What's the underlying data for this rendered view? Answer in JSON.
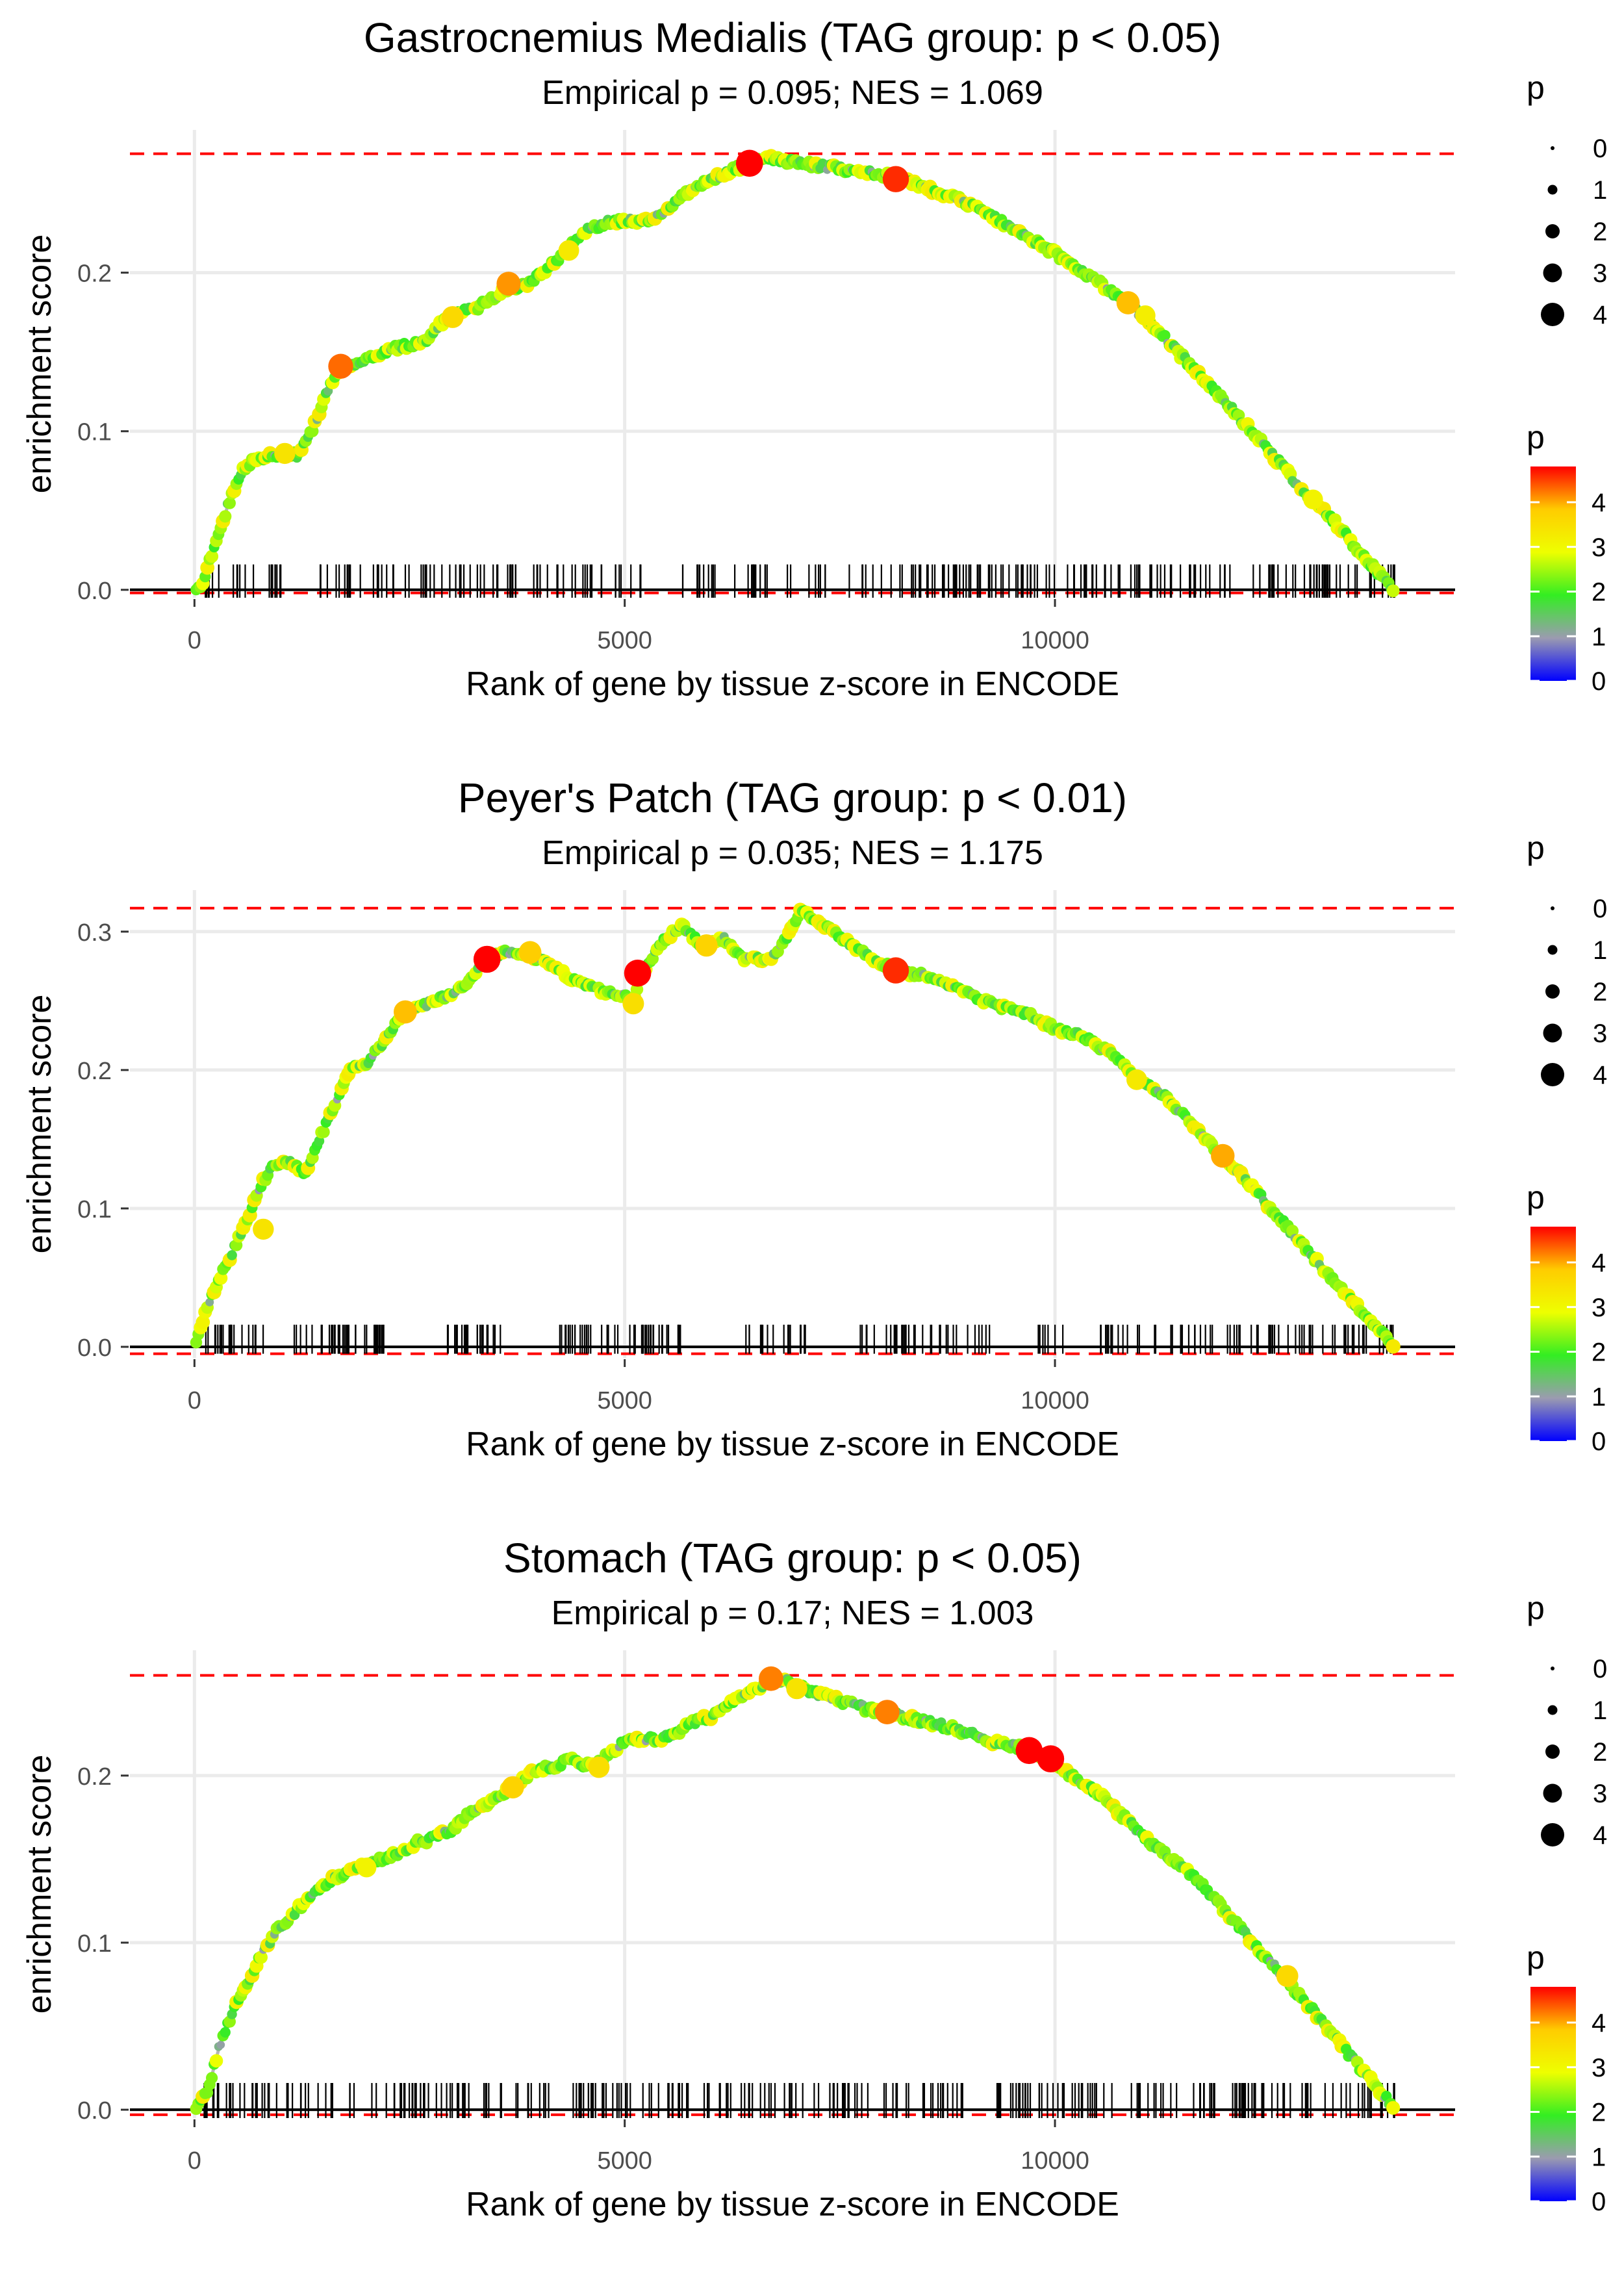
{
  "figure": {
    "background": "#ffffff"
  },
  "chart_data": [
    {
      "type": "line",
      "title": "Gastrocnemius Medialis (TAG group: p < 0.05)",
      "subtitle": "Empirical p = 0.095; NES = 1.069",
      "xlabel": "Rank of gene by tissue z-score in ENCODE",
      "ylabel": "enrichment score",
      "xlim": [
        -750,
        14650
      ],
      "ylim": [
        -0.005,
        0.29
      ],
      "xticks": [
        0,
        5000,
        10000
      ],
      "xtick_labels": [
        "0",
        "5000",
        "10000"
      ],
      "yticks": [
        0.0,
        0.1,
        0.2
      ],
      "ytick_labels": [
        "0.0",
        "0.1",
        "0.2"
      ],
      "max_es": 0.275,
      "min_es": -0.002,
      "baseline": 0,
      "curve": [
        [
          0,
          0.0
        ],
        [
          100,
          0.005
        ],
        [
          250,
          0.03
        ],
        [
          400,
          0.055
        ],
        [
          550,
          0.075
        ],
        [
          700,
          0.082
        ],
        [
          900,
          0.085
        ],
        [
          1000,
          0.085
        ],
        [
          1200,
          0.085
        ],
        [
          1350,
          0.098
        ],
        [
          1500,
          0.12
        ],
        [
          1650,
          0.138
        ],
        [
          1850,
          0.143
        ],
        [
          2050,
          0.147
        ],
        [
          2300,
          0.152
        ],
        [
          2550,
          0.155
        ],
        [
          2700,
          0.158
        ],
        [
          2900,
          0.17
        ],
        [
          3100,
          0.175
        ],
        [
          3300,
          0.178
        ],
        [
          3500,
          0.186
        ],
        [
          3650,
          0.19
        ],
        [
          3850,
          0.193
        ],
        [
          4050,
          0.2
        ],
        [
          4250,
          0.21
        ],
        [
          4500,
          0.225
        ],
        [
          4800,
          0.232
        ],
        [
          5050,
          0.233
        ],
        [
          5250,
          0.232
        ],
        [
          5450,
          0.238
        ],
        [
          5700,
          0.25
        ],
        [
          5950,
          0.258
        ],
        [
          6150,
          0.262
        ],
        [
          6400,
          0.268
        ],
        [
          6650,
          0.273
        ],
        [
          6900,
          0.27
        ],
        [
          7200,
          0.268
        ],
        [
          7600,
          0.265
        ],
        [
          8000,
          0.262
        ],
        [
          8400,
          0.255
        ],
        [
          8800,
          0.248
        ],
        [
          9200,
          0.238
        ],
        [
          9600,
          0.225
        ],
        [
          10000,
          0.212
        ],
        [
          10400,
          0.198
        ],
        [
          10800,
          0.183
        ],
        [
          11200,
          0.163
        ],
        [
          11600,
          0.14
        ],
        [
          12000,
          0.117
        ],
        [
          12400,
          0.093
        ],
        [
          12800,
          0.068
        ],
        [
          13200,
          0.046
        ],
        [
          13600,
          0.02
        ],
        [
          13950,
          0.0
        ]
      ],
      "highlights": [
        [
          1700,
          0.141,
          4.3
        ],
        [
          1050,
          0.086,
          3.4
        ],
        [
          3650,
          0.193,
          4.1
        ],
        [
          4350,
          0.214,
          3.3
        ],
        [
          6450,
          0.269,
          4.8
        ],
        [
          8150,
          0.259,
          4.6
        ],
        [
          10850,
          0.181,
          3.9
        ],
        [
          11050,
          0.173,
          3.2
        ],
        [
          13000,
          0.057,
          3.1
        ],
        [
          3000,
          0.172,
          3.6
        ]
      ],
      "rug": {
        "count": 260,
        "span": [
          100,
          13950
        ],
        "empty_gaps": [
          [
            1050,
            1250
          ],
          [
            5200,
            5600
          ],
          [
            6050,
            6250
          ]
        ]
      },
      "legend_size": {
        "title": "p",
        "labels": [
          "0",
          "1",
          "2",
          "3",
          "4"
        ]
      },
      "legend_color": {
        "title": "p",
        "labels": [
          "4",
          "3",
          "2",
          "1",
          "0"
        ],
        "range": [
          0,
          4.8
        ]
      }
    },
    {
      "type": "line",
      "title": "Peyer's Patch (TAG group: p < 0.01)",
      "subtitle": "Empirical p = 0.035; NES = 1.175",
      "xlabel": "Rank of gene by tissue z-score in ENCODE",
      "ylabel": "enrichment score",
      "xlim": [
        -750,
        14650
      ],
      "ylim": [
        -0.008,
        0.33
      ],
      "xticks": [
        0,
        5000,
        10000
      ],
      "xtick_labels": [
        "0",
        "5000",
        "10000"
      ],
      "yticks": [
        0.0,
        0.1,
        0.2,
        0.3
      ],
      "ytick_labels": [
        "0.0",
        "0.1",
        "0.2",
        "0.3"
      ],
      "max_es": 0.317,
      "min_es": -0.005,
      "baseline": 0,
      "curve": [
        [
          0,
          0.0
        ],
        [
          150,
          0.03
        ],
        [
          300,
          0.05
        ],
        [
          450,
          0.07
        ],
        [
          600,
          0.09
        ],
        [
          800,
          0.12
        ],
        [
          950,
          0.133
        ],
        [
          1100,
          0.133
        ],
        [
          1300,
          0.125
        ],
        [
          1450,
          0.15
        ],
        [
          1600,
          0.17
        ],
        [
          1800,
          0.2
        ],
        [
          2000,
          0.205
        ],
        [
          2200,
          0.22
        ],
        [
          2400,
          0.24
        ],
        [
          2600,
          0.245
        ],
        [
          2800,
          0.25
        ],
        [
          3000,
          0.255
        ],
        [
          3200,
          0.265
        ],
        [
          3400,
          0.28
        ],
        [
          3600,
          0.285
        ],
        [
          3800,
          0.285
        ],
        [
          4000,
          0.28
        ],
        [
          4200,
          0.275
        ],
        [
          4400,
          0.265
        ],
        [
          4600,
          0.26
        ],
        [
          4850,
          0.255
        ],
        [
          5000,
          0.255
        ],
        [
          5100,
          0.25
        ],
        [
          5200,
          0.27
        ],
        [
          5400,
          0.29
        ],
        [
          5650,
          0.305
        ],
        [
          5900,
          0.29
        ],
        [
          6150,
          0.295
        ],
        [
          6400,
          0.28
        ],
        [
          6700,
          0.28
        ],
        [
          6850,
          0.293
        ],
        [
          7050,
          0.315
        ],
        [
          7300,
          0.305
        ],
        [
          7600,
          0.292
        ],
        [
          7900,
          0.28
        ],
        [
          8150,
          0.272
        ],
        [
          8500,
          0.268
        ],
        [
          8800,
          0.26
        ],
        [
          9100,
          0.252
        ],
        [
          9400,
          0.245
        ],
        [
          9700,
          0.24
        ],
        [
          10000,
          0.23
        ],
        [
          10300,
          0.225
        ],
        [
          10700,
          0.21
        ],
        [
          11000,
          0.192
        ],
        [
          11300,
          0.18
        ],
        [
          11600,
          0.16
        ],
        [
          11950,
          0.138
        ],
        [
          12300,
          0.115
        ],
        [
          12650,
          0.09
        ],
        [
          13000,
          0.065
        ],
        [
          13350,
          0.04
        ],
        [
          13650,
          0.02
        ],
        [
          13950,
          0.0
        ]
      ],
      "highlights": [
        [
          2450,
          0.242,
          3.9
        ],
        [
          3400,
          0.28,
          4.8
        ],
        [
          3900,
          0.285,
          3.8
        ],
        [
          5100,
          0.248,
          3.5
        ],
        [
          5150,
          0.27,
          4.8
        ],
        [
          5950,
          0.29,
          3.7
        ],
        [
          8150,
          0.272,
          4.6
        ],
        [
          10950,
          0.193,
          3.3
        ],
        [
          11950,
          0.138,
          4.0
        ],
        [
          800,
          0.085,
          3.4
        ]
      ],
      "rug": {
        "count": 250,
        "span": [
          100,
          13950
        ],
        "empty_gaps": [
          [
            900,
            1150
          ],
          [
            2300,
            2900
          ],
          [
            3600,
            4200
          ],
          [
            5700,
            6400
          ],
          [
            7100,
            7700
          ],
          [
            9300,
            9800
          ],
          [
            10200,
            10500
          ]
        ]
      },
      "legend_size": {
        "title": "p",
        "labels": [
          "0",
          "1",
          "2",
          "3",
          "4"
        ]
      },
      "legend_color": {
        "title": "p",
        "labels": [
          "4",
          "3",
          "2",
          "1",
          "0"
        ],
        "range": [
          0,
          4.8
        ]
      }
    },
    {
      "type": "line",
      "title": "Stomach (TAG group: p < 0.05)",
      "subtitle": "Empirical p = 0.17; NES = 1.003",
      "xlabel": "Rank of gene by tissue z-score in ENCODE",
      "ylabel": "enrichment score",
      "xlim": [
        -750,
        14650
      ],
      "ylim": [
        -0.005,
        0.275
      ],
      "xticks": [
        0,
        5000,
        10000
      ],
      "xtick_labels": [
        "0",
        "5000",
        "10000"
      ],
      "yticks": [
        0.0,
        0.1,
        0.2
      ],
      "ytick_labels": [
        "0.0",
        "0.1",
        "0.2"
      ],
      "max_es": 0.26,
      "min_es": -0.003,
      "baseline": 0,
      "curve": [
        [
          0,
          0.0
        ],
        [
          150,
          0.01
        ],
        [
          300,
          0.04
        ],
        [
          450,
          0.06
        ],
        [
          600,
          0.075
        ],
        [
          800,
          0.095
        ],
        [
          1000,
          0.11
        ],
        [
          1200,
          0.12
        ],
        [
          1400,
          0.13
        ],
        [
          1600,
          0.138
        ],
        [
          1800,
          0.142
        ],
        [
          2000,
          0.146
        ],
        [
          2200,
          0.15
        ],
        [
          2400,
          0.155
        ],
        [
          2600,
          0.16
        ],
        [
          2800,
          0.163
        ],
        [
          3000,
          0.168
        ],
        [
          3200,
          0.178
        ],
        [
          3400,
          0.183
        ],
        [
          3600,
          0.19
        ],
        [
          3800,
          0.198
        ],
        [
          4000,
          0.203
        ],
        [
          4200,
          0.206
        ],
        [
          4400,
          0.21
        ],
        [
          4600,
          0.205
        ],
        [
          4800,
          0.212
        ],
        [
          5000,
          0.22
        ],
        [
          5200,
          0.222
        ],
        [
          5400,
          0.222
        ],
        [
          5600,
          0.225
        ],
        [
          5800,
          0.232
        ],
        [
          6000,
          0.235
        ],
        [
          6200,
          0.242
        ],
        [
          6400,
          0.248
        ],
        [
          6700,
          0.258
        ],
        [
          6900,
          0.256
        ],
        [
          7200,
          0.25
        ],
        [
          7500,
          0.245
        ],
        [
          7800,
          0.24
        ],
        [
          8100,
          0.237
        ],
        [
          8400,
          0.233
        ],
        [
          8700,
          0.23
        ],
        [
          9000,
          0.225
        ],
        [
          9300,
          0.22
        ],
        [
          9600,
          0.217
        ],
        [
          9900,
          0.21
        ],
        [
          10200,
          0.2
        ],
        [
          10500,
          0.19
        ],
        [
          10800,
          0.175
        ],
        [
          11100,
          0.16
        ],
        [
          11400,
          0.148
        ],
        [
          11700,
          0.135
        ],
        [
          12000,
          0.118
        ],
        [
          12300,
          0.1
        ],
        [
          12600,
          0.083
        ],
        [
          12900,
          0.065
        ],
        [
          13200,
          0.047
        ],
        [
          13500,
          0.028
        ],
        [
          13800,
          0.01
        ],
        [
          13950,
          0.0
        ]
      ],
      "highlights": [
        [
          3700,
          0.193,
          3.7
        ],
        [
          4700,
          0.205,
          3.5
        ],
        [
          6700,
          0.258,
          4.2
        ],
        [
          7000,
          0.252,
          3.4
        ],
        [
          8050,
          0.238,
          4.2
        ],
        [
          9700,
          0.215,
          4.8
        ],
        [
          9950,
          0.21,
          4.8
        ],
        [
          12700,
          0.08,
          3.6
        ],
        [
          2000,
          0.145,
          3.1
        ]
      ],
      "rug": {
        "count": 290,
        "span": [
          100,
          13950
        ],
        "empty_gaps": [
          [
            9050,
            9300
          ]
        ]
      },
      "legend_size": {
        "title": "p",
        "labels": [
          "0",
          "1",
          "2",
          "3",
          "4"
        ]
      },
      "legend_color": {
        "title": "p",
        "labels": [
          "4",
          "3",
          "2",
          "1",
          "0"
        ],
        "range": [
          0,
          4.8
        ]
      }
    }
  ],
  "colors": {
    "grid": "#ebebeb",
    "curve_line": "#b5b5b5",
    "dashed": "#ff0000",
    "baseline": "#000000",
    "rug": "#000000",
    "text": "#000000",
    "tick_text": "#4d4d4d",
    "scale": [
      "#0000ff",
      "#9b9bb0",
      "#33ee22",
      "#eeff00",
      "#ffcc00",
      "#ff0000"
    ]
  }
}
